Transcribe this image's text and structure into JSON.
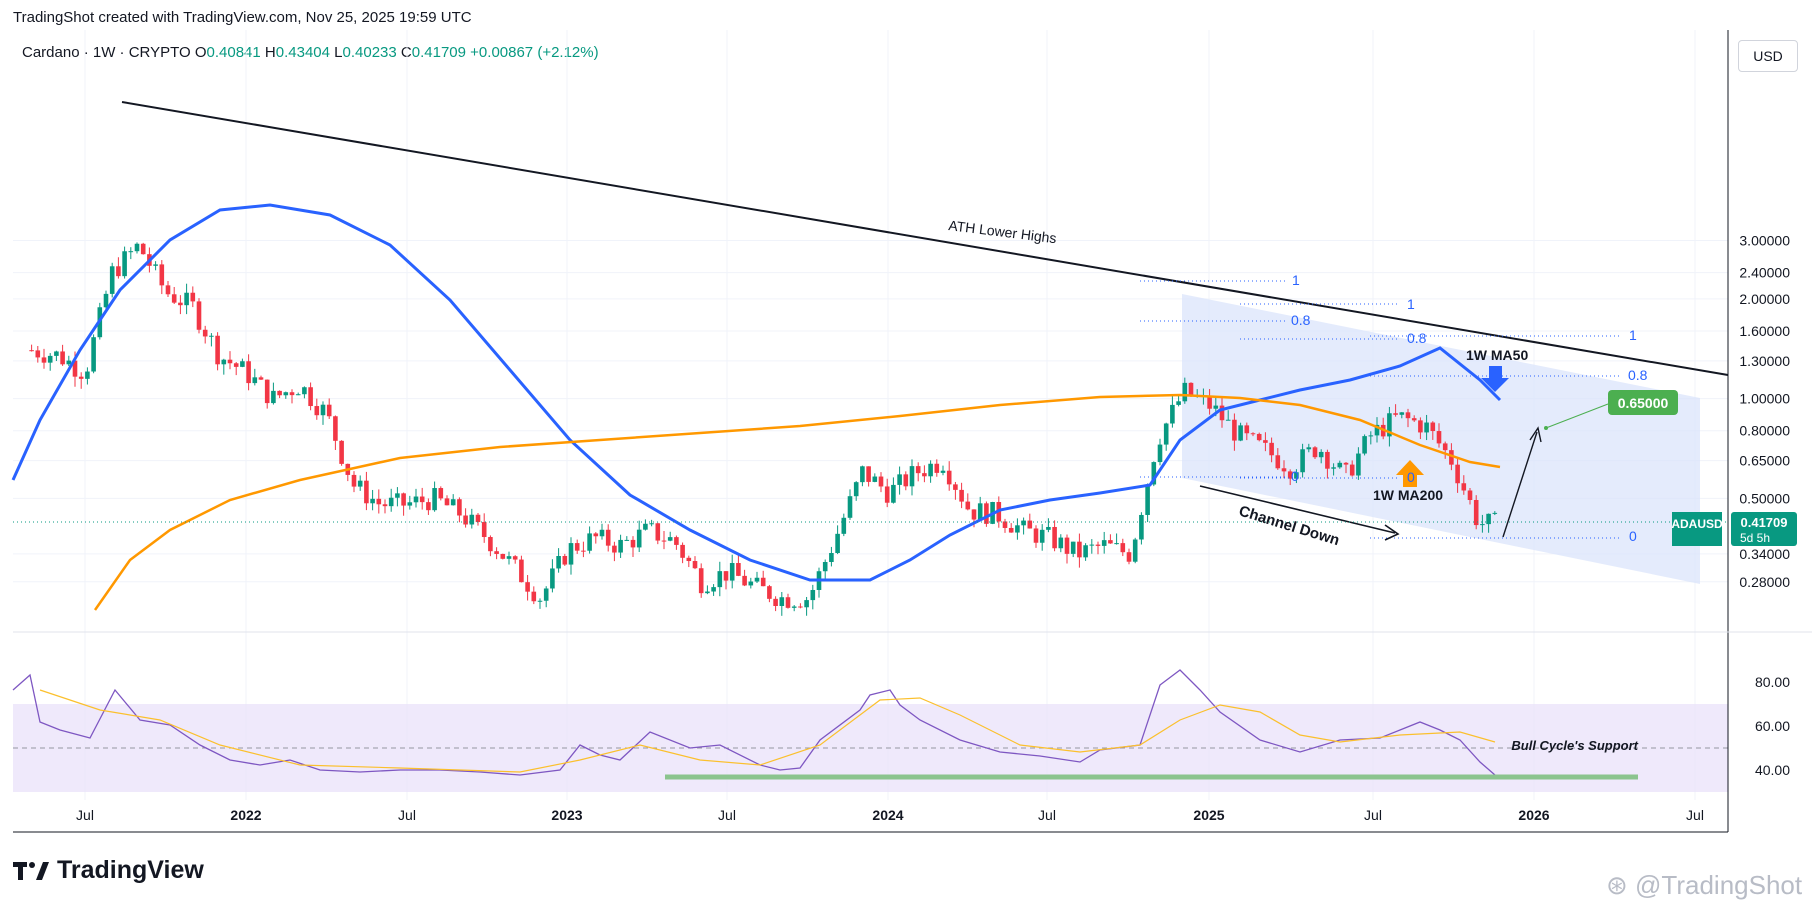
{
  "header": {
    "text": "TradingShot created with TradingView.com, Nov 25, 2025 19:59 UTC"
  },
  "symbol": {
    "name": "Cardano · 1W · CRYPTO",
    "open_label": "O",
    "open": "0.40841",
    "high_label": "H",
    "high": "0.43404",
    "low_label": "L",
    "low": "0.40233",
    "close_label": "C",
    "close": "0.41709",
    "change": "+0.00867 (+2.12%)"
  },
  "currency": "USD",
  "price_tag": {
    "ticker": "ADAUSD",
    "price": "0.41709",
    "countdown": "5d 5h",
    "color": "#089981"
  },
  "target_tag": {
    "price": "0.65000",
    "color": "#4caf50"
  },
  "logo": {
    "text": "TradingView",
    "icon": "tradingview-logo-icon"
  },
  "watermark": {
    "text": "@TradingShot",
    "icon": "tradingshot-logo-icon"
  },
  "colors": {
    "up": "#089981",
    "down": "#f23645",
    "ma50": "#2962ff",
    "ma200": "#ff9800",
    "rsi": "#7e57c2",
    "rsi_ma": "#fbc02d",
    "channel_fill": "#dbe4fb",
    "fib": "#2962ff"
  },
  "chart_data": [
    {
      "type": "candlestick",
      "title": "Cardano · 1W · CRYPTO",
      "y_scale": "log",
      "y_ticks": [
        "3.00000",
        "2.40000",
        "2.00000",
        "1.60000",
        "1.30000",
        "1.00000",
        "0.80000",
        "0.65000",
        "0.50000",
        "0.34000",
        "0.28000"
      ],
      "x_ticks": [
        "Jul",
        "2022",
        "Jul",
        "2023",
        "Jul",
        "2024",
        "Jul",
        "2025",
        "Jul",
        "2026",
        "Jul"
      ],
      "ohlc_last": {
        "open": 0.40841,
        "high": 0.43404,
        "low": 0.40233,
        "close": 0.41709
      },
      "price_path_approx": [
        [
          "2021-05",
          1.4
        ],
        [
          "2021-06",
          1.35
        ],
        [
          "2021-07",
          1.2
        ],
        [
          "2021-08",
          2.4
        ],
        [
          "2021-09",
          2.9
        ],
        [
          "2021-10",
          2.1
        ],
        [
          "2021-11",
          1.9
        ],
        [
          "2021-12",
          1.35
        ],
        [
          "2022-01",
          1.2
        ],
        [
          "2022-02",
          1.0
        ],
        [
          "2022-03",
          1.1
        ],
        [
          "2022-04",
          0.9
        ],
        [
          "2022-05",
          0.55
        ],
        [
          "2022-06",
          0.48
        ],
        [
          "2022-07",
          0.48
        ],
        [
          "2022-08",
          0.5
        ],
        [
          "2022-09",
          0.45
        ],
        [
          "2022-10",
          0.38
        ],
        [
          "2022-11",
          0.31
        ],
        [
          "2022-12",
          0.25
        ],
        [
          "2023-01",
          0.35
        ],
        [
          "2023-02",
          0.38
        ],
        [
          "2023-03",
          0.36
        ],
        [
          "2023-04",
          0.4
        ],
        [
          "2023-05",
          0.37
        ],
        [
          "2023-06",
          0.28
        ],
        [
          "2023-07",
          0.3
        ],
        [
          "2023-08",
          0.27
        ],
        [
          "2023-09",
          0.25
        ],
        [
          "2023-10",
          0.25
        ],
        [
          "2023-11",
          0.38
        ],
        [
          "2023-12",
          0.6
        ],
        [
          "2024-01",
          0.52
        ],
        [
          "2024-02",
          0.6
        ],
        [
          "2024-03",
          0.65
        ],
        [
          "2024-04",
          0.46
        ],
        [
          "2024-05",
          0.45
        ],
        [
          "2024-06",
          0.4
        ],
        [
          "2024-07",
          0.38
        ],
        [
          "2024-08",
          0.34
        ],
        [
          "2024-09",
          0.36
        ],
        [
          "2024-10",
          0.34
        ],
        [
          "2024-11",
          0.75
        ],
        [
          "2024-12",
          1.05
        ],
        [
          "2025-01",
          0.95
        ],
        [
          "2025-02",
          0.78
        ],
        [
          "2025-03",
          0.7
        ],
        [
          "2025-04",
          0.62
        ],
        [
          "2025-05",
          0.72
        ],
        [
          "2025-06",
          0.58
        ],
        [
          "2025-07",
          0.78
        ],
        [
          "2025-08",
          0.88
        ],
        [
          "2025-09",
          0.83
        ],
        [
          "2025-10",
          0.65
        ],
        [
          "2025-11",
          0.42
        ]
      ],
      "series": [
        {
          "name": "1W MA50",
          "color": "#2962ff"
        },
        {
          "name": "1W MA200",
          "color": "#ff9800"
        }
      ],
      "annotations": {
        "trendline": "ATH Lower Highs",
        "channel": "Channel Down",
        "fib_levels": [
          "1",
          "0.8",
          "0",
          "1",
          "0.8",
          "0",
          "1",
          "0.8",
          "0"
        ],
        "target": "0.65000",
        "ma50_label": "1W MA50",
        "ma200_label": "1W MA200"
      }
    },
    {
      "type": "line",
      "title": "",
      "y_ticks": [
        "80.00",
        "60.00",
        "40.00"
      ],
      "series": [
        {
          "name": "",
          "color": "#7e57c2"
        },
        {
          "name": "",
          "color": "#fbc02d"
        }
      ],
      "band": [
        30,
        70
      ],
      "midline": 50,
      "support_label": "Bull Cycle's Support"
    }
  ]
}
